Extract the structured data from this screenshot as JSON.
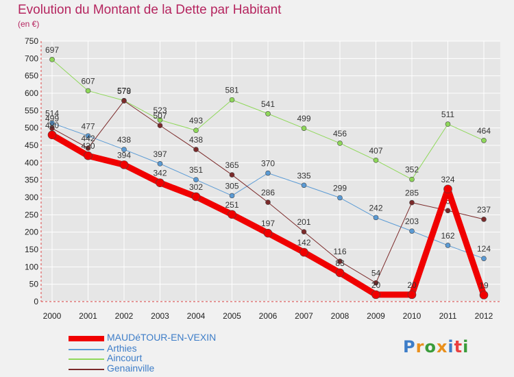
{
  "title": "Evolution du Montant de la Dette par Habitant",
  "subtitle": "(en €)",
  "logo": {
    "text": "Proxiti",
    "colors": [
      "#3d7dc8",
      "#e9901d",
      "#3a9b3a",
      "#e9901d",
      "#3d7dc8",
      "#e94040",
      "#3a9b3a"
    ]
  },
  "chart_data": {
    "type": "line",
    "x": [
      "2000",
      "2001",
      "2002",
      "2003",
      "2004",
      "2005",
      "2006",
      "2007",
      "2008",
      "2009",
      "2010",
      "2011",
      "2012"
    ],
    "ylim": [
      0,
      750
    ],
    "yticks": [
      0,
      50,
      100,
      150,
      200,
      250,
      300,
      350,
      400,
      450,
      500,
      550,
      600,
      650,
      700,
      750
    ],
    "grid": true,
    "legend_position": "bottom-left",
    "series": [
      {
        "name": "Aincourt",
        "color": "#8fd85a",
        "width": 1,
        "values": [
          697,
          607,
          579,
          523,
          493,
          581,
          541,
          499,
          456,
          407,
          352,
          511,
          464
        ],
        "labels": [
          "697",
          "607",
          "579",
          "523",
          "493",
          "581",
          "541",
          "499",
          "456",
          "407",
          "352",
          "511",
          "464"
        ]
      },
      {
        "name": "Arthies",
        "color": "#5b9bd5",
        "width": 1,
        "values": [
          514,
          477,
          438,
          397,
          351,
          305,
          370,
          335,
          299,
          242,
          203,
          162,
          124
        ],
        "labels": [
          "514",
          "477",
          "438",
          "397",
          "351",
          "305",
          "370",
          "335",
          "299",
          "242",
          "203",
          "162",
          "124"
        ]
      },
      {
        "name": "Genainville",
        "color": "#7b2a2a",
        "width": 1,
        "values": [
          499,
          442,
          578,
          507,
          438,
          365,
          286,
          201,
          116,
          54,
          285,
          262,
          237
        ],
        "labels": [
          "499",
          "442",
          "578",
          "507",
          "438",
          "365",
          "286",
          "201",
          "116",
          "54",
          "285",
          "262",
          "237"
        ]
      },
      {
        "name": "MAUDéTOUR-EN-VEXIN",
        "color": "#f00000",
        "width": 9,
        "values": [
          480,
          420,
          394,
          342,
          302,
          251,
          197,
          142,
          83,
          20,
          20,
          324,
          19
        ],
        "labels": [
          "480",
          "420",
          "394",
          "342",
          "302",
          "251",
          "197",
          "142",
          "83",
          "20",
          "20",
          "324",
          "19"
        ]
      }
    ],
    "legend_order": [
      "MAUDéTOUR-EN-VEXIN",
      "Arthies",
      "Aincourt",
      "Genainville"
    ]
  }
}
